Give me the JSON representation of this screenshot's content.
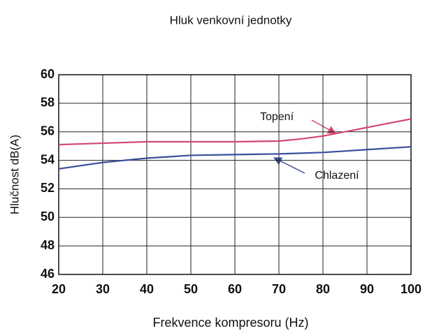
{
  "chart_data": {
    "type": "line",
    "title": "Hluk venkovní jednotky",
    "xlabel": "Frekvence kompresoru (Hz)",
    "ylabel": "Hlučnost dB(A)",
    "x": [
      20,
      30,
      40,
      50,
      60,
      70,
      75,
      80,
      85,
      90,
      100
    ],
    "series": [
      {
        "name": "Topení",
        "color": "#d4466e",
        "values": [
          55.1,
          55.2,
          55.3,
          55.3,
          55.3,
          55.35,
          55.5,
          55.7,
          56.0,
          56.3,
          56.9
        ]
      },
      {
        "name": "Chlazení",
        "color": "#3b4f9c",
        "values": [
          53.4,
          53.85,
          54.15,
          54.35,
          54.4,
          54.45,
          54.5,
          54.55,
          54.65,
          54.75,
          54.95
        ]
      }
    ],
    "xlim": [
      20,
      100
    ],
    "xticks": [
      20,
      30,
      40,
      50,
      60,
      70,
      80,
      90,
      100
    ],
    "ylim": [
      46,
      60
    ],
    "yticks": [
      46,
      48,
      50,
      52,
      54,
      56,
      58,
      60
    ],
    "grid": true
  }
}
